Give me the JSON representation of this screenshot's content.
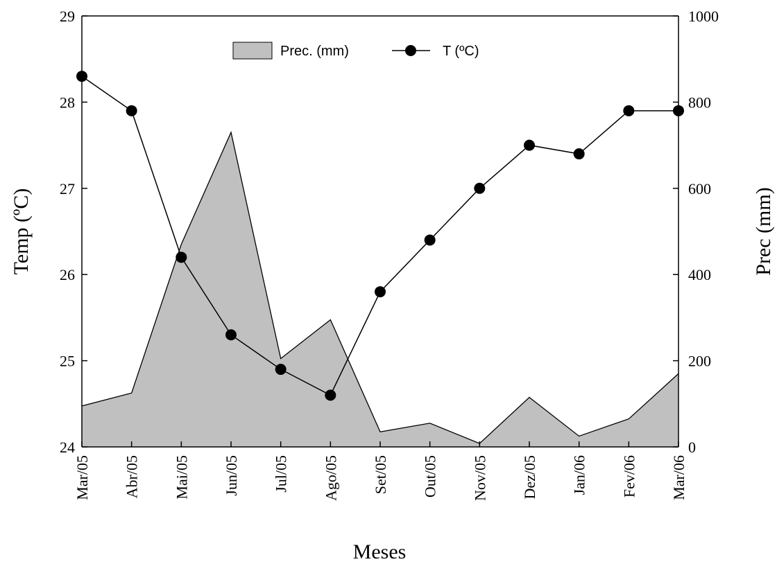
{
  "chart_data": {
    "type": "area+line",
    "categories": [
      "Mar/05",
      "Abr/05",
      "Mai/05",
      "Jun/05",
      "Jul/05",
      "Ago/05",
      "Set/05",
      "Out/05",
      "Nov/05",
      "Dez/05",
      "Jan/06",
      "Fev/06",
      "Mar/06"
    ],
    "series": [
      {
        "name": "Prec. (mm)",
        "type": "area",
        "axis": "right",
        "color": "#c0c0c0",
        "values": [
          95,
          125,
          470,
          730,
          205,
          295,
          35,
          55,
          8,
          115,
          25,
          65,
          170
        ]
      },
      {
        "name": "T (ºC)",
        "type": "line",
        "axis": "left",
        "color": "#000000",
        "values": [
          28.3,
          27.9,
          26.2,
          25.3,
          24.9,
          24.6,
          25.8,
          26.4,
          27.0,
          27.5,
          27.4,
          27.9,
          27.9
        ]
      }
    ],
    "xlabel": "Meses",
    "ylabel_left": "Temp (ºC)",
    "ylabel_right": "Prec (mm)",
    "ylim_left": [
      24,
      29
    ],
    "ylim_right": [
      0,
      1000
    ],
    "yticks_left": [
      "24",
      "25",
      "26",
      "27",
      "28",
      "29"
    ],
    "yticks_right": [
      "0",
      "200",
      "400",
      "600",
      "800",
      "1000"
    ],
    "grid": false,
    "legend_position": "top-center"
  }
}
